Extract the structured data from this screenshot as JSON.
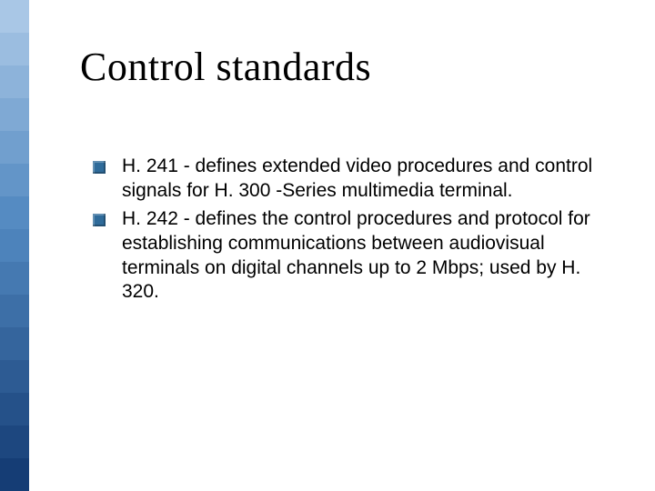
{
  "title": "Control standards",
  "title_fontsize": 44,
  "title_font": "Times New Roman",
  "title_color": "#000000",
  "body_fontsize": 21,
  "body_color": "#000000",
  "bullet_color": "#2f6b9a",
  "bullet_size": 14,
  "background_color": "#ffffff",
  "sidebar": {
    "width": 32,
    "bands": [
      "#a9c7e6",
      "#9bbde0",
      "#8db3da",
      "#7fa9d4",
      "#719fce",
      "#6395c8",
      "#558bc2",
      "#4d83bb",
      "#4579b1",
      "#3d6fa7",
      "#35659d",
      "#2d5b93",
      "#255189",
      "#1d477f",
      "#153d75"
    ]
  },
  "bullets": [
    "H. 241 - defines extended video procedures and control signals for H. 300 -Series multimedia terminal.",
    "H. 242 - defines the control procedures and protocol for establishing communications between audiovisual terminals on digital channels up to 2 Mbps; used by H. 320."
  ]
}
